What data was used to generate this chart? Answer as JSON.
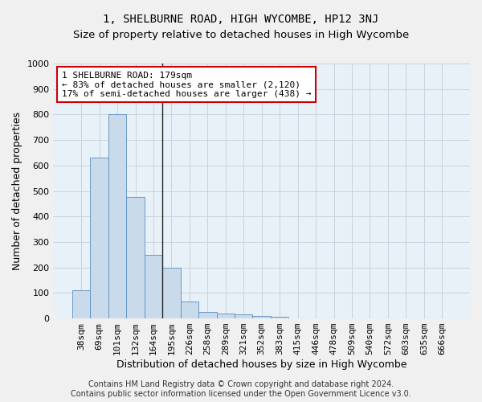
{
  "title": "1, SHELBURNE ROAD, HIGH WYCOMBE, HP12 3NJ",
  "subtitle": "Size of property relative to detached houses in High Wycombe",
  "xlabel": "Distribution of detached houses by size in High Wycombe",
  "ylabel": "Number of detached properties",
  "categories": [
    "38sqm",
    "69sqm",
    "101sqm",
    "132sqm",
    "164sqm",
    "195sqm",
    "226sqm",
    "258sqm",
    "289sqm",
    "321sqm",
    "352sqm",
    "383sqm",
    "415sqm",
    "446sqm",
    "478sqm",
    "509sqm",
    "540sqm",
    "572sqm",
    "603sqm",
    "635sqm",
    "666sqm"
  ],
  "values": [
    110,
    630,
    800,
    475,
    250,
    200,
    65,
    25,
    20,
    15,
    10,
    8,
    0,
    0,
    0,
    0,
    0,
    0,
    0,
    0,
    0
  ],
  "bar_color": "#c9daea",
  "bar_edge_color": "#5a8fc0",
  "vline_x": 4.5,
  "vline_color": "#222222",
  "annotation_text": "1 SHELBURNE ROAD: 179sqm\n← 83% of detached houses are smaller (2,120)\n17% of semi-detached houses are larger (438) →",
  "annotation_box_color": "#ffffff",
  "annotation_box_edge_color": "#cc0000",
  "ylim": [
    0,
    1000
  ],
  "yticks": [
    0,
    100,
    200,
    300,
    400,
    500,
    600,
    700,
    800,
    900,
    1000
  ],
  "grid_color": "#c8d4e0",
  "background_color": "#e8f0f8",
  "fig_background_color": "#f0f0f0",
  "footer": "Contains HM Land Registry data © Crown copyright and database right 2024.\nContains public sector information licensed under the Open Government Licence v3.0.",
  "title_fontsize": 10,
  "subtitle_fontsize": 9.5,
  "axis_label_fontsize": 9,
  "tick_fontsize": 8,
  "annotation_fontsize": 8,
  "footer_fontsize": 7
}
